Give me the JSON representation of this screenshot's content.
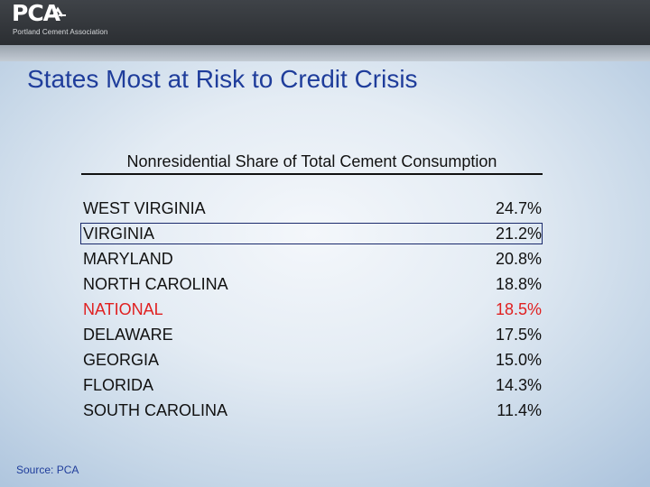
{
  "logo": {
    "text": "PCA",
    "subtext": "Portland Cement Association"
  },
  "title": "States Most at Risk to Credit Crisis",
  "table": {
    "heading": "Nonresidential Share of Total Cement Consumption",
    "rows": [
      {
        "state": "WEST VIRGINIA",
        "share": "24.7%"
      },
      {
        "state": "VIRGINIA",
        "share": "21.2%"
      },
      {
        "state": "MARYLAND",
        "share": "20.8%"
      },
      {
        "state": "NORTH CAROLINA",
        "share": "18.8%"
      },
      {
        "state": "NATIONAL",
        "share": "18.5%"
      },
      {
        "state": "DELAWARE",
        "share": "17.5%"
      },
      {
        "state": "GEORGIA",
        "share": "15.0%"
      },
      {
        "state": "FLORIDA",
        "share": "14.3%"
      },
      {
        "state": "SOUTH CAROLINA",
        "share": "11.4%"
      }
    ],
    "highlighted_row": "VIRGINIA",
    "national_color": "#e02020"
  },
  "source": "Source: PCA",
  "colors": {
    "title": "#1f3d9b",
    "header": "#2b2e32"
  }
}
